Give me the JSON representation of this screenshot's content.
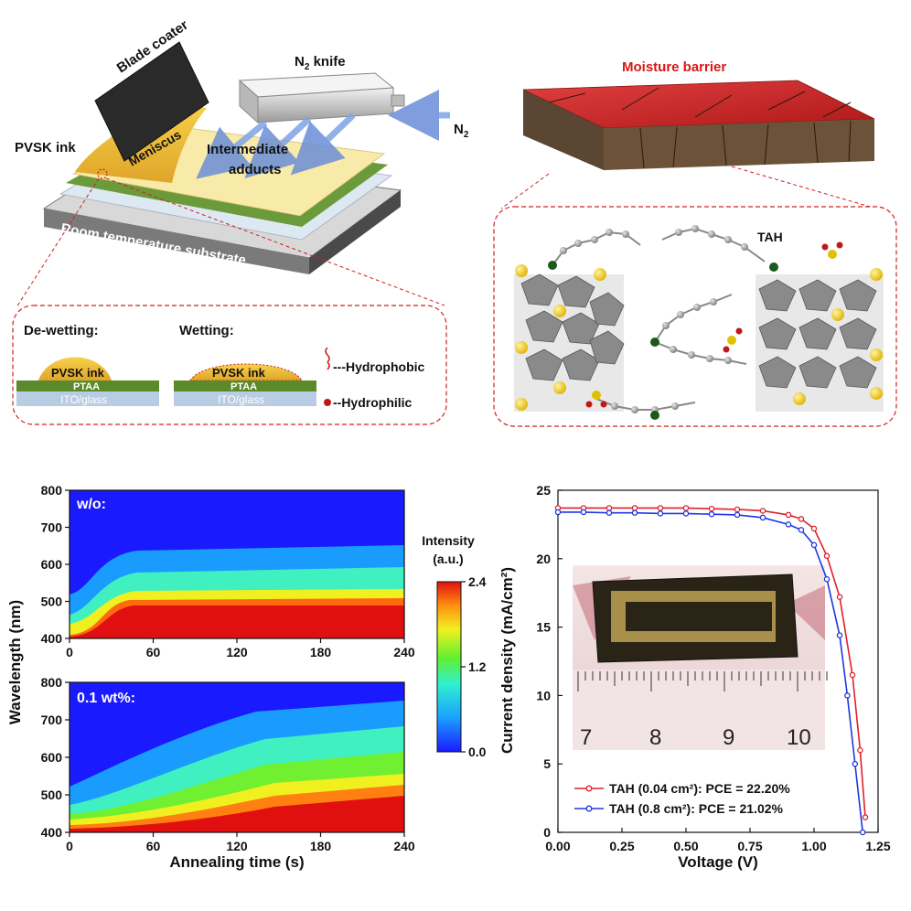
{
  "schematic": {
    "blade_coater": "Blade coater",
    "n2_knife_main": "N",
    "n2_knife_sub": "2",
    "n2_knife_rest": " knife",
    "n2_main": "N",
    "n2_sub": "2",
    "pvsk_ink": "PVSK ink",
    "meniscus": "Meniscus",
    "intermediate_line1": "Intermediate",
    "intermediate_line2": "adducts",
    "substrate": "Room temperature substrate"
  },
  "wetting_inset": {
    "dewetting_title": "De-wetting:",
    "wetting_title": "Wetting:",
    "ink": "PVSK ink",
    "ptaa": "PTAA",
    "ito": "ITO/glass",
    "legend_hydrophobic": "---Hydrophobic",
    "legend_hydrophilic": "--Hydrophilic"
  },
  "barrier": {
    "title": "Moisture barrier",
    "molecule": "TAH"
  },
  "heatmaps": {
    "ylabel": "Wavelength (nm)",
    "xlabel": "Annealing time (s)",
    "top_label": "w/o:",
    "bottom_label": "0.1 wt%:",
    "x_ticks": [
      "0",
      "60",
      "120",
      "180",
      "240"
    ],
    "y_ticks": [
      "400",
      "500",
      "600",
      "700",
      "800"
    ],
    "colorbar_title_1": "Intensity",
    "colorbar_title_2": "(a.u.)",
    "colorbar_ticks": [
      "0.0",
      "1.2",
      "2.4"
    ]
  },
  "chart_data": {
    "type": "line",
    "xlabel": "Voltage (V)",
    "ylabel": "Current density (mA/cm²)",
    "xlim": [
      0,
      1.25
    ],
    "ylim": [
      0,
      25
    ],
    "x_ticks": [
      "0.00",
      "0.25",
      "0.50",
      "0.75",
      "1.00",
      "1.25"
    ],
    "y_ticks": [
      "0",
      "5",
      "10",
      "15",
      "20",
      "25"
    ],
    "legend_position": "bottom-left",
    "photo_scale_labels": [
      "7",
      "8",
      "9",
      "10"
    ],
    "series": [
      {
        "name": "TAH (0.04 cm²): PCE = 22.20%",
        "color": "#e0202a",
        "x": [
          0.0,
          0.1,
          0.2,
          0.3,
          0.4,
          0.5,
          0.6,
          0.7,
          0.8,
          0.9,
          0.95,
          1.0,
          1.05,
          1.1,
          1.15,
          1.18,
          1.2
        ],
        "y": [
          23.7,
          23.7,
          23.7,
          23.7,
          23.7,
          23.7,
          23.65,
          23.6,
          23.5,
          23.2,
          22.9,
          22.2,
          20.2,
          17.2,
          11.5,
          6.0,
          1.1
        ]
      },
      {
        "name": "TAH (0.8 cm²): PCE = 21.02%",
        "color": "#2036e0",
        "x": [
          0.0,
          0.1,
          0.2,
          0.3,
          0.4,
          0.5,
          0.6,
          0.7,
          0.8,
          0.9,
          0.95,
          1.0,
          1.05,
          1.1,
          1.13,
          1.16,
          1.19
        ],
        "y": [
          23.4,
          23.4,
          23.35,
          23.35,
          23.3,
          23.3,
          23.25,
          23.2,
          23.0,
          22.5,
          22.1,
          21.0,
          18.5,
          14.4,
          10.0,
          5.0,
          0.0
        ]
      }
    ]
  }
}
